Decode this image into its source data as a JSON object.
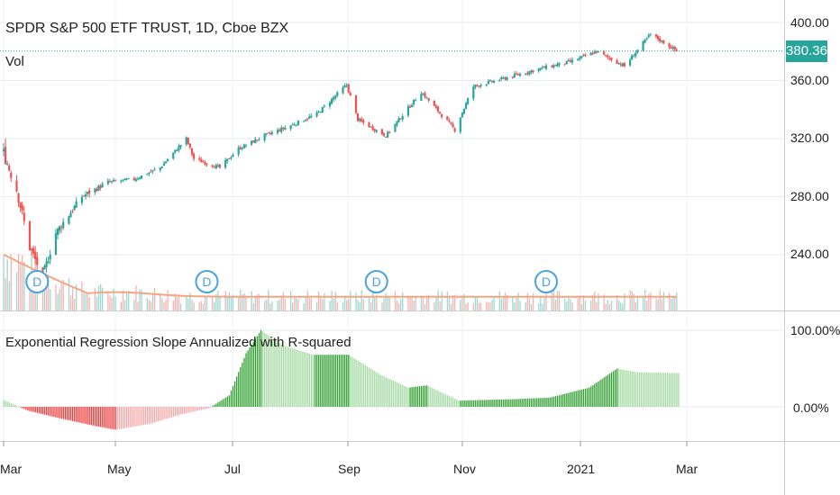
{
  "header": {
    "title": "SPDR S&P 500 ETF TRUST, 1D, Cboe BZX",
    "vol_label": "Vol"
  },
  "price_panel": {
    "last_price": "380.36",
    "last_price_color": "#26a69a",
    "y_ticks": [
      "400.00",
      "360.00",
      "320.00",
      "280.00",
      "240.00"
    ]
  },
  "indicator_panel": {
    "title": "Exponential Regression Slope Annualized with R-squared",
    "y_ticks": [
      "100.00%",
      "0.00%"
    ]
  },
  "dividend_marker_label": "D",
  "x_ticks": [
    "Mar",
    "May",
    "Jul",
    "Sep",
    "Nov",
    "2021",
    "Mar"
  ],
  "colors": {
    "up": "#26a69a",
    "down": "#ef5350",
    "vol_ma": "#f4a582",
    "ind_strong_pos": "#2e9e2e",
    "ind_weak_pos": "#a3d9a0",
    "ind_strong_neg": "#f23b3b",
    "ind_weak_neg": "#f5a9a9",
    "marker": "#4aa3df"
  },
  "chart_data": [
    {
      "type": "candlestick",
      "title": "SPDR S&P 500 ETF TRUST, 1D, Cboe BZX",
      "x_range": [
        "2020-03-01",
        "2021-03-01"
      ],
      "y_range": [
        205,
        412
      ],
      "close_path": [
        {
          "x": "2020-03-02",
          "y": 310
        },
        {
          "x": "2020-03-09",
          "y": 285
        },
        {
          "x": "2020-03-16",
          "y": 245
        },
        {
          "x": "2020-03-23",
          "y": 225
        },
        {
          "x": "2020-03-30",
          "y": 255
        },
        {
          "x": "2020-04-13",
          "y": 280
        },
        {
          "x": "2020-04-27",
          "y": 290
        },
        {
          "x": "2020-05-11",
          "y": 292
        },
        {
          "x": "2020-05-25",
          "y": 300
        },
        {
          "x": "2020-06-08",
          "y": 320
        },
        {
          "x": "2020-06-12",
          "y": 306
        },
        {
          "x": "2020-06-26",
          "y": 300
        },
        {
          "x": "2020-07-06",
          "y": 313
        },
        {
          "x": "2020-07-20",
          "y": 322
        },
        {
          "x": "2020-08-03",
          "y": 329
        },
        {
          "x": "2020-08-17",
          "y": 337
        },
        {
          "x": "2020-09-02",
          "y": 357
        },
        {
          "x": "2020-09-08",
          "y": 333
        },
        {
          "x": "2020-09-23",
          "y": 322
        },
        {
          "x": "2020-10-12",
          "y": 352
        },
        {
          "x": "2020-10-30",
          "y": 326
        },
        {
          "x": "2020-11-09",
          "y": 356
        },
        {
          "x": "2020-11-30",
          "y": 363
        },
        {
          "x": "2020-12-14",
          "y": 368
        },
        {
          "x": "2020-12-31",
          "y": 373
        },
        {
          "x": "2021-01-14",
          "y": 380
        },
        {
          "x": "2021-01-29",
          "y": 370
        },
        {
          "x": "2021-02-12",
          "y": 392
        },
        {
          "x": "2021-02-26",
          "y": 380.36
        }
      ],
      "last": 380.36
    },
    {
      "type": "bar",
      "name": "Exponential Regression Slope Annualized with R-squared",
      "unit": "%",
      "x_range": [
        "2020-03-01",
        "2021-03-01"
      ],
      "ylim": [
        -50,
        120
      ],
      "values_path": [
        {
          "x": "2020-03-01",
          "y": 10
        },
        {
          "x": "2020-03-15",
          "y": -5
        },
        {
          "x": "2020-04-01",
          "y": -15
        },
        {
          "x": "2020-04-20",
          "y": -25
        },
        {
          "x": "2020-05-01",
          "y": -30
        },
        {
          "x": "2020-05-20",
          "y": -22
        },
        {
          "x": "2020-06-05",
          "y": -10
        },
        {
          "x": "2020-06-20",
          "y": -2
        },
        {
          "x": "2020-07-01",
          "y": 15
        },
        {
          "x": "2020-07-10",
          "y": 70
        },
        {
          "x": "2020-07-18",
          "y": 100
        },
        {
          "x": "2020-07-30",
          "y": 80
        },
        {
          "x": "2020-08-15",
          "y": 68
        },
        {
          "x": "2020-09-03",
          "y": 68
        },
        {
          "x": "2020-09-20",
          "y": 42
        },
        {
          "x": "2020-10-05",
          "y": 25
        },
        {
          "x": "2020-10-15",
          "y": 28
        },
        {
          "x": "2020-11-01",
          "y": 8
        },
        {
          "x": "2020-12-01",
          "y": 10
        },
        {
          "x": "2020-12-20",
          "y": 12
        },
        {
          "x": "2021-01-10",
          "y": 25
        },
        {
          "x": "2021-01-25",
          "y": 50
        },
        {
          "x": "2021-02-05",
          "y": 45
        },
        {
          "x": "2021-02-28",
          "y": 44
        }
      ]
    }
  ]
}
